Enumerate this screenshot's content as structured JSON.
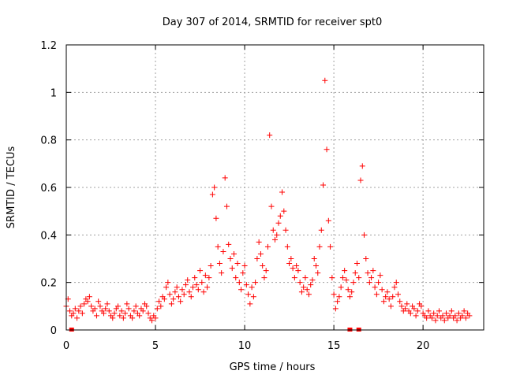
{
  "chart_data": {
    "type": "scatter",
    "title": "Day 307 of 2014, SRMTID for receiver spt0",
    "xlabel": "GPS time / hours",
    "ylabel": "SRMTID / TECUs",
    "xlim": [
      0,
      23.4
    ],
    "ylim": [
      0,
      1.2
    ],
    "xticks": [
      0,
      5,
      10,
      15,
      20
    ],
    "xtick_labels": [
      "0",
      "5",
      "10",
      "15",
      "20"
    ],
    "yticks": [
      0,
      0.2,
      0.4,
      0.6,
      0.8,
      1.0,
      1.2
    ],
    "ytick_labels": [
      "0",
      "0.2",
      "0.4",
      "0.6",
      "0.8",
      "1",
      "1.2"
    ],
    "grid": true,
    "marker": "+",
    "color": "#ff0000",
    "series": [
      {
        "name": "SRMTID",
        "points": [
          [
            0.0,
            0.1
          ],
          [
            0.1,
            0.13
          ],
          [
            0.2,
            0.08
          ],
          [
            0.3,
            0.06
          ],
          [
            0.4,
            0.07
          ],
          [
            0.5,
            0.09
          ],
          [
            0.6,
            0.05
          ],
          [
            0.7,
            0.08
          ],
          [
            0.8,
            0.1
          ],
          [
            0.9,
            0.07
          ],
          [
            1.0,
            0.11
          ],
          [
            1.1,
            0.13
          ],
          [
            1.2,
            0.12
          ],
          [
            1.3,
            0.14
          ],
          [
            1.4,
            0.1
          ],
          [
            1.5,
            0.08
          ],
          [
            1.6,
            0.09
          ],
          [
            1.7,
            0.06
          ],
          [
            1.8,
            0.12
          ],
          [
            1.9,
            0.1
          ],
          [
            2.0,
            0.08
          ],
          [
            2.1,
            0.07
          ],
          [
            2.2,
            0.09
          ],
          [
            2.3,
            0.11
          ],
          [
            2.4,
            0.08
          ],
          [
            2.5,
            0.06
          ],
          [
            2.6,
            0.05
          ],
          [
            2.7,
            0.07
          ],
          [
            2.8,
            0.09
          ],
          [
            2.9,
            0.1
          ],
          [
            3.0,
            0.06
          ],
          [
            3.1,
            0.08
          ],
          [
            3.2,
            0.05
          ],
          [
            3.3,
            0.07
          ],
          [
            3.4,
            0.11
          ],
          [
            3.5,
            0.09
          ],
          [
            3.6,
            0.06
          ],
          [
            3.7,
            0.05
          ],
          [
            3.8,
            0.08
          ],
          [
            3.9,
            0.1
          ],
          [
            4.0,
            0.07
          ],
          [
            4.1,
            0.06
          ],
          [
            4.2,
            0.09
          ],
          [
            4.3,
            0.08
          ],
          [
            4.4,
            0.11
          ],
          [
            4.5,
            0.1
          ],
          [
            4.6,
            0.07
          ],
          [
            4.7,
            0.05
          ],
          [
            4.8,
            0.04
          ],
          [
            4.9,
            0.06
          ],
          [
            5.0,
            0.05
          ],
          [
            5.1,
            0.09
          ],
          [
            5.2,
            0.12
          ],
          [
            5.3,
            0.1
          ],
          [
            5.4,
            0.14
          ],
          [
            5.5,
            0.13
          ],
          [
            5.6,
            0.18
          ],
          [
            5.7,
            0.2
          ],
          [
            5.8,
            0.15
          ],
          [
            5.9,
            0.11
          ],
          [
            6.0,
            0.13
          ],
          [
            6.1,
            0.16
          ],
          [
            6.2,
            0.18
          ],
          [
            6.3,
            0.14
          ],
          [
            6.4,
            0.12
          ],
          [
            6.5,
            0.17
          ],
          [
            6.6,
            0.15
          ],
          [
            6.7,
            0.19
          ],
          [
            6.8,
            0.21
          ],
          [
            6.9,
            0.16
          ],
          [
            7.0,
            0.14
          ],
          [
            7.1,
            0.18
          ],
          [
            7.2,
            0.22
          ],
          [
            7.3,
            0.19
          ],
          [
            7.4,
            0.17
          ],
          [
            7.5,
            0.25
          ],
          [
            7.6,
            0.2
          ],
          [
            7.7,
            0.16
          ],
          [
            7.8,
            0.23
          ],
          [
            7.9,
            0.18
          ],
          [
            8.0,
            0.22
          ],
          [
            8.1,
            0.27
          ],
          [
            8.2,
            0.57
          ],
          [
            8.3,
            0.6
          ],
          [
            8.4,
            0.47
          ],
          [
            8.5,
            0.35
          ],
          [
            8.6,
            0.28
          ],
          [
            8.7,
            0.24
          ],
          [
            8.8,
            0.33
          ],
          [
            8.9,
            0.64
          ],
          [
            9.0,
            0.52
          ],
          [
            9.1,
            0.36
          ],
          [
            9.2,
            0.3
          ],
          [
            9.3,
            0.26
          ],
          [
            9.4,
            0.32
          ],
          [
            9.5,
            0.22
          ],
          [
            9.6,
            0.28
          ],
          [
            9.7,
            0.2
          ],
          [
            9.8,
            0.17
          ],
          [
            9.9,
            0.24
          ],
          [
            10.0,
            0.27
          ],
          [
            10.1,
            0.19
          ],
          [
            10.2,
            0.15
          ],
          [
            10.3,
            0.11
          ],
          [
            10.4,
            0.18
          ],
          [
            10.5,
            0.14
          ],
          [
            10.6,
            0.2
          ],
          [
            10.7,
            0.3
          ],
          [
            10.8,
            0.37
          ],
          [
            10.9,
            0.32
          ],
          [
            11.0,
            0.27
          ],
          [
            11.1,
            0.22
          ],
          [
            11.2,
            0.25
          ],
          [
            11.3,
            0.35
          ],
          [
            11.4,
            0.82
          ],
          [
            11.5,
            0.52
          ],
          [
            11.6,
            0.42
          ],
          [
            11.7,
            0.38
          ],
          [
            11.8,
            0.4
          ],
          [
            11.9,
            0.45
          ],
          [
            12.0,
            0.48
          ],
          [
            12.1,
            0.58
          ],
          [
            12.2,
            0.5
          ],
          [
            12.3,
            0.42
          ],
          [
            12.4,
            0.35
          ],
          [
            12.5,
            0.28
          ],
          [
            12.6,
            0.3
          ],
          [
            12.7,
            0.26
          ],
          [
            12.8,
            0.22
          ],
          [
            12.9,
            0.27
          ],
          [
            13.0,
            0.25
          ],
          [
            13.1,
            0.2
          ],
          [
            13.2,
            0.16
          ],
          [
            13.3,
            0.18
          ],
          [
            13.4,
            0.22
          ],
          [
            13.5,
            0.17
          ],
          [
            13.6,
            0.15
          ],
          [
            13.7,
            0.19
          ],
          [
            13.8,
            0.21
          ],
          [
            13.9,
            0.3
          ],
          [
            14.0,
            0.27
          ],
          [
            14.1,
            0.24
          ],
          [
            14.2,
            0.35
          ],
          [
            14.3,
            0.42
          ],
          [
            14.4,
            0.61
          ],
          [
            14.5,
            1.05
          ],
          [
            14.6,
            0.76
          ],
          [
            14.7,
            0.46
          ],
          [
            14.8,
            0.35
          ],
          [
            14.9,
            0.22
          ],
          [
            15.0,
            0.15
          ],
          [
            15.1,
            0.09
          ],
          [
            15.2,
            0.12
          ],
          [
            15.3,
            0.14
          ],
          [
            15.4,
            0.18
          ],
          [
            15.5,
            0.22
          ],
          [
            15.6,
            0.25
          ],
          [
            15.7,
            0.21
          ],
          [
            15.8,
            0.17
          ],
          [
            15.9,
            0.14
          ],
          [
            16.0,
            0.16
          ],
          [
            16.1,
            0.2
          ],
          [
            16.2,
            0.24
          ],
          [
            16.3,
            0.28
          ],
          [
            16.4,
            0.22
          ],
          [
            16.5,
            0.63
          ],
          [
            16.6,
            0.69
          ],
          [
            16.7,
            0.4
          ],
          [
            16.8,
            0.3
          ],
          [
            16.9,
            0.24
          ],
          [
            17.0,
            0.2
          ],
          [
            17.1,
            0.22
          ],
          [
            17.2,
            0.25
          ],
          [
            17.3,
            0.18
          ],
          [
            17.4,
            0.15
          ],
          [
            17.5,
            0.2
          ],
          [
            17.6,
            0.23
          ],
          [
            17.7,
            0.17
          ],
          [
            17.8,
            0.12
          ],
          [
            17.9,
            0.14
          ],
          [
            18.0,
            0.16
          ],
          [
            18.1,
            0.13
          ],
          [
            18.2,
            0.1
          ],
          [
            18.3,
            0.14
          ],
          [
            18.4,
            0.18
          ],
          [
            18.5,
            0.2
          ],
          [
            18.6,
            0.15
          ],
          [
            18.7,
            0.12
          ],
          [
            18.8,
            0.1
          ],
          [
            18.9,
            0.08
          ],
          [
            19.0,
            0.09
          ],
          [
            19.1,
            0.11
          ],
          [
            19.2,
            0.08
          ],
          [
            19.3,
            0.07
          ],
          [
            19.4,
            0.1
          ],
          [
            19.5,
            0.09
          ],
          [
            19.6,
            0.06
          ],
          [
            19.7,
            0.08
          ],
          [
            19.8,
            0.11
          ],
          [
            19.9,
            0.1
          ],
          [
            20.0,
            0.07
          ],
          [
            20.1,
            0.06
          ],
          [
            20.2,
            0.05
          ],
          [
            20.3,
            0.08
          ],
          [
            20.4,
            0.06
          ],
          [
            20.5,
            0.05
          ],
          [
            20.6,
            0.07
          ],
          [
            20.7,
            0.04
          ],
          [
            20.8,
            0.06
          ],
          [
            20.9,
            0.08
          ],
          [
            21.0,
            0.05
          ],
          [
            21.1,
            0.06
          ],
          [
            21.2,
            0.04
          ],
          [
            21.3,
            0.07
          ],
          [
            21.4,
            0.05
          ],
          [
            21.5,
            0.06
          ],
          [
            21.6,
            0.08
          ],
          [
            21.7,
            0.05
          ],
          [
            21.8,
            0.06
          ],
          [
            21.9,
            0.04
          ],
          [
            22.0,
            0.07
          ],
          [
            22.1,
            0.05
          ],
          [
            22.2,
            0.06
          ],
          [
            22.3,
            0.08
          ],
          [
            22.4,
            0.05
          ],
          [
            22.5,
            0.07
          ],
          [
            22.6,
            0.06
          ]
        ]
      }
    ],
    "baseline_markers": [
      0.3,
      15.9,
      16.4
    ]
  }
}
